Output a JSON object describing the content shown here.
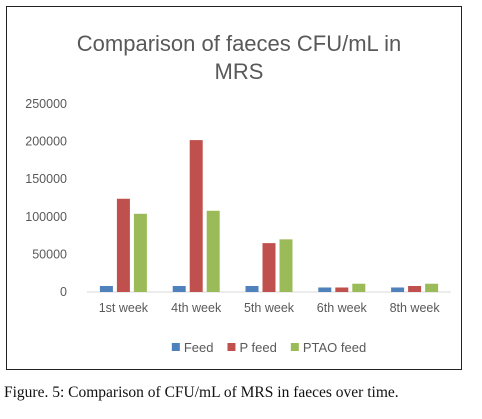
{
  "chart_data": {
    "type": "bar",
    "title_lines": [
      "Comparison of faeces CFU/mL in",
      "MRS"
    ],
    "categories": [
      "1st week",
      "4th week",
      "5th week",
      "6th week",
      "8th week"
    ],
    "series": [
      {
        "name": "Feed",
        "color": "#4F81BD",
        "values": [
          8000,
          8000,
          8000,
          6000,
          6000
        ]
      },
      {
        "name": "P feed",
        "color": "#C0504D",
        "values": [
          124000,
          202000,
          65000,
          6000,
          8000
        ]
      },
      {
        "name": "PTAO feed",
        "color": "#9BBB59",
        "values": [
          104000,
          108000,
          70000,
          11000,
          11000
        ]
      }
    ],
    "ylim": [
      0,
      250000
    ],
    "yticks": [
      "0",
      "50000",
      "100000",
      "150000",
      "200000",
      "250000"
    ],
    "grid": false,
    "legend_position": "bottom"
  },
  "caption": "Figure. 5: Comparison of CFU/mL of MRS in faeces over time."
}
